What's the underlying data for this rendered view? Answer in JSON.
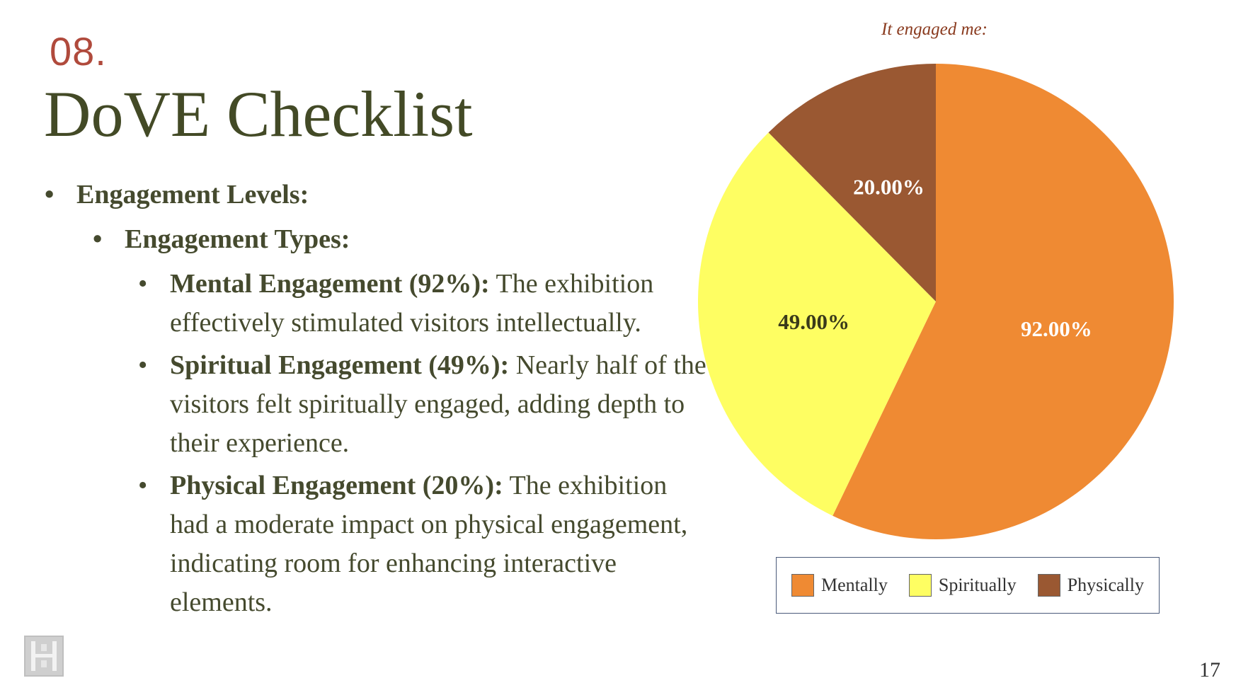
{
  "header": {
    "section_number": "08.",
    "title": "DoVE Checklist"
  },
  "bullets": {
    "level1": "Engagement Levels:",
    "level2": "Engagement Types:",
    "items": [
      {
        "bold": "Mental Engagement (92%):",
        "text": " The exhibition effectively stimulated visitors intellectually."
      },
      {
        "bold": "Spiritual Engagement (49%):",
        "text": " Nearly half of the visitors felt spiritually engaged, adding depth to their experience."
      },
      {
        "bold": "Physical Engagement (20%):",
        "text": " The exhibition had a moderate impact on physical engagement, indicating room for enhancing interactive elements."
      }
    ]
  },
  "page_number": "17",
  "icons": {
    "logo": "institution-logo-icon"
  },
  "chart_data": {
    "type": "pie",
    "title": "It engaged me:",
    "categories": [
      "Mentally",
      "Spiritually",
      "Physically"
    ],
    "values": [
      92.0,
      49.0,
      20.0
    ],
    "labels": [
      "92.00%",
      "49.00%",
      "20.00%"
    ],
    "colors": [
      "#ef8a33",
      "#fefe62",
      "#9a5832"
    ],
    "label_colors": [
      "#ffffff",
      "#3a3a1a",
      "#ffffff"
    ],
    "start_angle_deg": 0,
    "direction": "clockwise",
    "legend_position": "bottom"
  }
}
